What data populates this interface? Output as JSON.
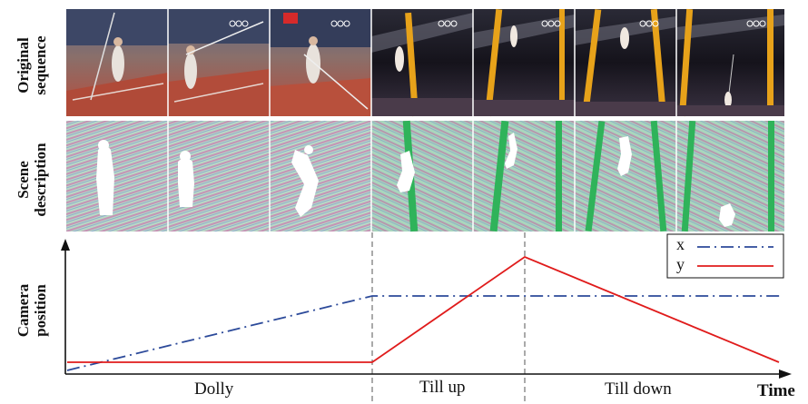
{
  "rows": {
    "original": "Original sequence",
    "original_line1": "Original",
    "original_line2": "sequence",
    "scene_line1": "Scene",
    "scene_line2": "description",
    "camera_line1": "Camera",
    "camera_line2": "position"
  },
  "phases": {
    "dolly": "Dolly",
    "tilt_up": "Till up",
    "tilt_down": "Till down"
  },
  "axis": {
    "time": "Time"
  },
  "legend": {
    "x": "x",
    "y": "y"
  },
  "colors": {
    "x_series": "#2c4a9a",
    "y_series": "#e01b1b",
    "scene_bg": "#9fd8b8",
    "stadium_night": "#1d1a22",
    "track_red": "#b94b3a"
  },
  "frames_count": 7,
  "chart_data": {
    "type": "line",
    "series": [
      {
        "name": "x",
        "style": "dash-dot",
        "color": "#2c4a9a"
      },
      {
        "name": "y",
        "style": "solid",
        "color": "#e01b1b"
      }
    ],
    "phases": [
      "Dolly",
      "Till up",
      "Till down"
    ],
    "xlabel": "Time",
    "ylabel": "Camera position"
  }
}
